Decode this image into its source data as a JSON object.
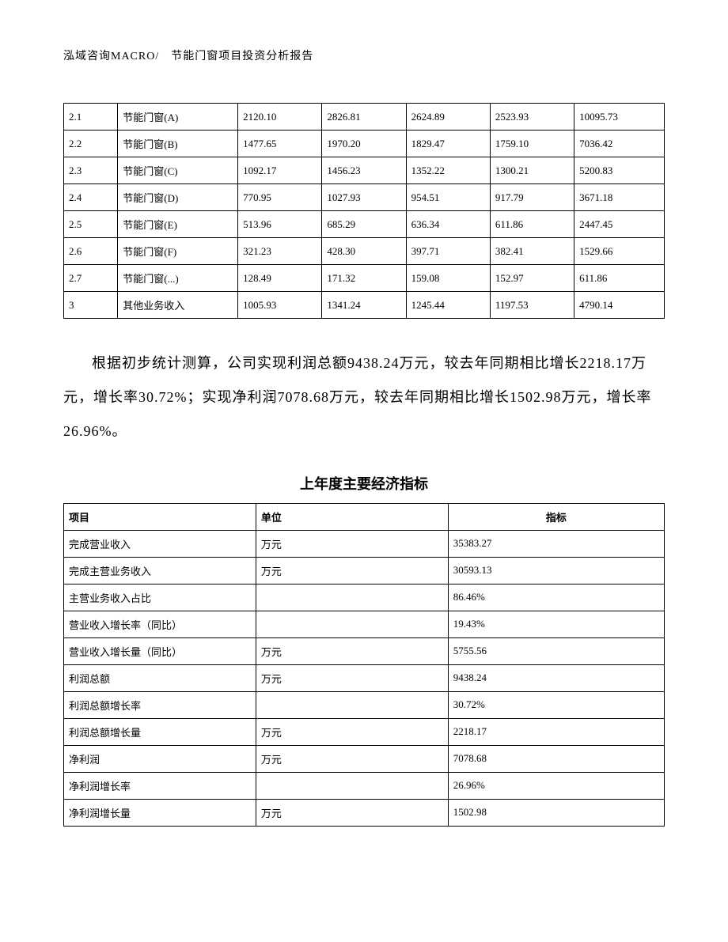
{
  "header": "泓域咨询MACRO/　节能门窗项目投资分析报告",
  "table1": {
    "rows": [
      [
        "2.1",
        "节能门窗(A)",
        "2120.10",
        "2826.81",
        "2624.89",
        "2523.93",
        "10095.73"
      ],
      [
        "2.2",
        "节能门窗(B)",
        "1477.65",
        "1970.20",
        "1829.47",
        "1759.10",
        "7036.42"
      ],
      [
        "2.3",
        "节能门窗(C)",
        "1092.17",
        "1456.23",
        "1352.22",
        "1300.21",
        "5200.83"
      ],
      [
        "2.4",
        "节能门窗(D)",
        "770.95",
        "1027.93",
        "954.51",
        "917.79",
        "3671.18"
      ],
      [
        "2.5",
        "节能门窗(E)",
        "513.96",
        "685.29",
        "636.34",
        "611.86",
        "2447.45"
      ],
      [
        "2.6",
        "节能门窗(F)",
        "321.23",
        "428.30",
        "397.71",
        "382.41",
        "1529.66"
      ],
      [
        "2.7",
        "节能门窗(...)",
        "128.49",
        "171.32",
        "159.08",
        "152.97",
        "611.86"
      ],
      [
        "3",
        "其他业务收入",
        "1005.93",
        "1341.24",
        "1245.44",
        "1197.53",
        "4790.14"
      ]
    ]
  },
  "paragraph": "根据初步统计测算，公司实现利润总额9438.24万元，较去年同期相比增长2218.17万元，增长率30.72%；实现净利润7078.68万元，较去年同期相比增长1502.98万元，增长率26.96%。",
  "section_title": "上年度主要经济指标",
  "table2": {
    "headers": [
      "项目",
      "单位",
      "指标"
    ],
    "rows": [
      [
        "完成营业收入",
        "万元",
        "35383.27"
      ],
      [
        "完成主营业务收入",
        "万元",
        "30593.13"
      ],
      [
        "主营业务收入占比",
        "",
        "86.46%"
      ],
      [
        "营业收入增长率（同比）",
        "",
        "19.43%"
      ],
      [
        "营业收入增长量（同比）",
        "万元",
        "5755.56"
      ],
      [
        "利润总额",
        "万元",
        "9438.24"
      ],
      [
        "利润总额增长率",
        "",
        "30.72%"
      ],
      [
        "利润总额增长量",
        "万元",
        "2218.17"
      ],
      [
        "净利润",
        "万元",
        "7078.68"
      ],
      [
        "净利润增长率",
        "",
        "26.96%"
      ],
      [
        "净利润增长量",
        "万元",
        "1502.98"
      ]
    ]
  }
}
